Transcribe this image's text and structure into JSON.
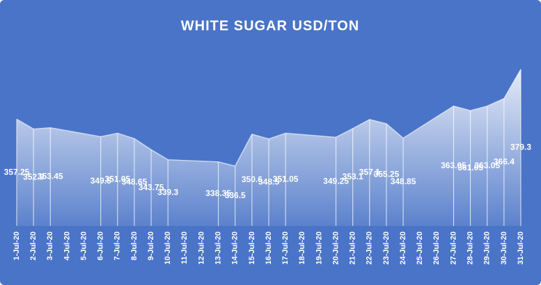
{
  "chart_data": {
    "type": "area",
    "title": "WHITE SUGAR USD/TON",
    "x": [
      "1-Jul-20",
      "2-Jul-20",
      "3-Jul-20",
      "6-Jul-20",
      "7-Jul-20",
      "8-Jul-20",
      "9-Jul-20",
      "10-Jul-20",
      "13-Jul-20",
      "14-Jul-20",
      "15-Jul-20",
      "16-Jul-20",
      "17-Jul-20",
      "20-Jul-20",
      "21-Jul-20",
      "22-Jul-20",
      "23-Jul-20",
      "24-Jul-20",
      "27-Jul-20",
      "28-Jul-20",
      "29-Jul-20",
      "30-Jul-20",
      "31-Jul-20"
    ],
    "values": [
      357.25,
      352.9,
      353.45,
      349.5,
      351.05,
      348.65,
      343.75,
      339.3,
      338.35,
      336.5,
      350.6,
      348.5,
      351.05,
      349.25,
      353.1,
      357.1,
      355.25,
      348.85,
      363.05,
      361.05,
      363.05,
      366.4,
      379.3
    ],
    "xticks": [
      "1-Jul-20",
      "2-Jul-20",
      "3-Jul-20",
      "4-Jul-20",
      "5-Jul-20",
      "6-Jul-20",
      "7-Jul-20",
      "8-Jul-20",
      "9-Jul-20",
      "10-Jul-20",
      "11-Jul-20",
      "12-Jul-20",
      "13-Jul-20",
      "14-Jul-20",
      "15-Jul-20",
      "16-Jul-20",
      "17-Jul-20",
      "18-Jul-20",
      "19-Jul-20",
      "20-Jul-20",
      "21-Jul-20",
      "22-Jul-20",
      "23-Jul-20",
      "24-Jul-20",
      "25-Jul-20",
      "26-Jul-20",
      "27-Jul-20",
      "28-Jul-20",
      "29-Jul-20",
      "30-Jul-20",
      "31-Jul-20"
    ],
    "ylim": [
      310,
      390
    ],
    "color": "#ffffff",
    "background": "#4a74c7"
  }
}
